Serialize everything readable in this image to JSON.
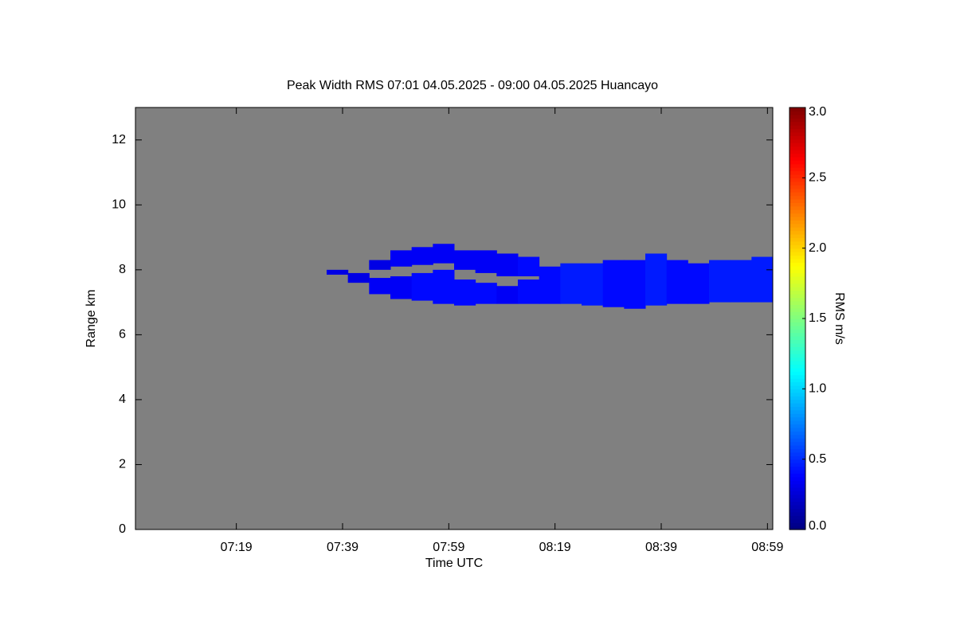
{
  "chart_data": {
    "type": "heatmap",
    "title": "Peak Width RMS   07:01 04.05.2025 - 09:00 04.05.2025 Huancayo",
    "x_label": "Time UTC",
    "y_label": "Range km",
    "colorbar_label": "RMS m/s",
    "xlim": [
      "07:00",
      "09:00"
    ],
    "xticks": [
      "07:19",
      "07:39",
      "07:59",
      "08:19",
      "08:39",
      "08:59"
    ],
    "ylim": [
      0,
      13
    ],
    "yticks": [
      0,
      2,
      4,
      6,
      8,
      10,
      12
    ],
    "clim": [
      0,
      3
    ],
    "cticks": [
      {
        "value": 0,
        "label": "0.0"
      },
      {
        "value": 0.5,
        "label": "0.5"
      },
      {
        "value": 1,
        "label": "1.0"
      },
      {
        "value": 1.5,
        "label": "1.5"
      },
      {
        "value": 2,
        "label": "2.0"
      },
      {
        "value": 2.5,
        "label": "2.5"
      },
      {
        "value": 3,
        "label": "3.0"
      }
    ],
    "background": "#808080",
    "layers": [
      {
        "x": [
          "07:36",
          "07:40",
          "07:44",
          "07:48",
          "07:52",
          "07:56",
          "08:00",
          "08:04",
          "08:08",
          "08:12",
          "08:16",
          "08:20",
          "08:24",
          "08:28",
          "08:32",
          "08:36",
          "08:40",
          "08:44",
          "08:48",
          "08:52",
          "08:56"
        ],
        "bottom": [
          7.85,
          7.6,
          7.25,
          7.1,
          7.05,
          6.95,
          6.9,
          6.95,
          6.95,
          6.95,
          6.95,
          6.95,
          6.9,
          6.85,
          6.8,
          6.9,
          6.95,
          6.95,
          7.0,
          7.0,
          7.0
        ],
        "top": [
          8.0,
          7.9,
          7.75,
          7.8,
          7.9,
          8.0,
          7.7,
          7.6,
          7.5,
          7.7,
          8.1,
          8.2,
          8.2,
          8.3,
          8.3,
          8.5,
          8.3,
          8.2,
          8.3,
          8.3,
          8.4
        ],
        "values": [
          0.3,
          0.3,
          0.35,
          0.35,
          0.4,
          0.4,
          0.4,
          0.4,
          0.35,
          0.4,
          0.4,
          0.45,
          0.45,
          0.4,
          0.4,
          0.45,
          0.4,
          0.4,
          0.45,
          0.45,
          0.45
        ]
      },
      {
        "x": [
          "07:44",
          "07:48",
          "07:52",
          "07:56",
          "08:00",
          "08:04",
          "08:08",
          "08:12"
        ],
        "bottom": [
          8.0,
          8.1,
          8.15,
          8.2,
          8.0,
          7.9,
          7.8,
          7.8
        ],
        "top": [
          8.3,
          8.6,
          8.7,
          8.8,
          8.6,
          8.6,
          8.5,
          8.4
        ],
        "values": [
          0.3,
          0.35,
          0.35,
          0.35,
          0.35,
          0.35,
          0.35,
          0.4
        ]
      }
    ]
  }
}
